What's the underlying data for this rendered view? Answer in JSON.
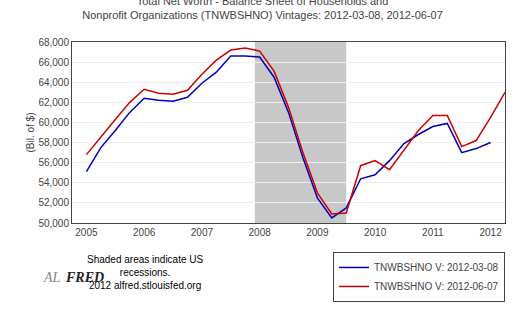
{
  "chart_data": {
    "type": "line",
    "title": "Total Net Worth - Balance Sheet of Households and\nNonprofit Organizations (TNWBSHNO) Vintages: 2012-03-08, 2012-06-07",
    "ylabel": "(Bil. of $)",
    "x": [
      2005.0,
      2005.25,
      2005.5,
      2005.75,
      2006.0,
      2006.25,
      2006.5,
      2006.75,
      2007.0,
      2007.25,
      2007.5,
      2007.75,
      2008.0,
      2008.25,
      2008.5,
      2008.75,
      2009.0,
      2009.25,
      2009.5,
      2009.75,
      2010.0,
      2010.25,
      2010.5,
      2010.75,
      2011.0,
      2011.25,
      2011.5,
      2011.75,
      2012.0,
      2012.25
    ],
    "series": [
      {
        "name": "TNWBSHNO V: 2012-03-08",
        "color": "#0000bb",
        "values": [
          55100,
          57500,
          59200,
          61000,
          62400,
          62200,
          62100,
          62500,
          63900,
          65000,
          66600,
          66600,
          66500,
          64500,
          61000,
          56500,
          52500,
          50500,
          51500,
          54400,
          54800,
          56200,
          57900,
          58800,
          59600,
          59900,
          57000,
          57400,
          58000,
          null
        ]
      },
      {
        "name": "TNWBSHNO V: 2012-06-07",
        "color": "#cc0000",
        "values": [
          56800,
          58600,
          60300,
          62000,
          63300,
          62900,
          62800,
          63200,
          64800,
          66200,
          67200,
          67400,
          67100,
          65100,
          61500,
          57000,
          53000,
          50900,
          51000,
          55700,
          56200,
          55300,
          57200,
          59200,
          60700,
          60700,
          57600,
          58200,
          60500,
          63000
        ]
      }
    ],
    "xlim": [
      2004.75,
      2012.25
    ],
    "xticks": [
      2005,
      2006,
      2007,
      2008,
      2009,
      2010,
      2011,
      2012
    ],
    "ylim": [
      50000,
      68000
    ],
    "yticks": [
      {
        "value": 50000,
        "label": "50,000"
      },
      {
        "value": 52000,
        "label": "52,000"
      },
      {
        "value": 54000,
        "label": "54,000"
      },
      {
        "value": 56000,
        "label": "56,000"
      },
      {
        "value": 58000,
        "label": "58,000"
      },
      {
        "value": 60000,
        "label": "60,000"
      },
      {
        "value": 62000,
        "label": "62,000"
      },
      {
        "value": 64000,
        "label": "64,000"
      },
      {
        "value": 66000,
        "label": "66,000"
      },
      {
        "value": 68000,
        "label": "68,000"
      }
    ],
    "shaded": [
      {
        "x0": 2007.917,
        "x1": 2009.5,
        "color": "#c8c8c8"
      }
    ],
    "annotations": [
      "Shaded areas indicate US",
      "recessions.",
      "2012 alfred.stlouisfed.org",
      "AL",
      "FRED"
    ],
    "grid": true,
    "legend": "lower right"
  }
}
